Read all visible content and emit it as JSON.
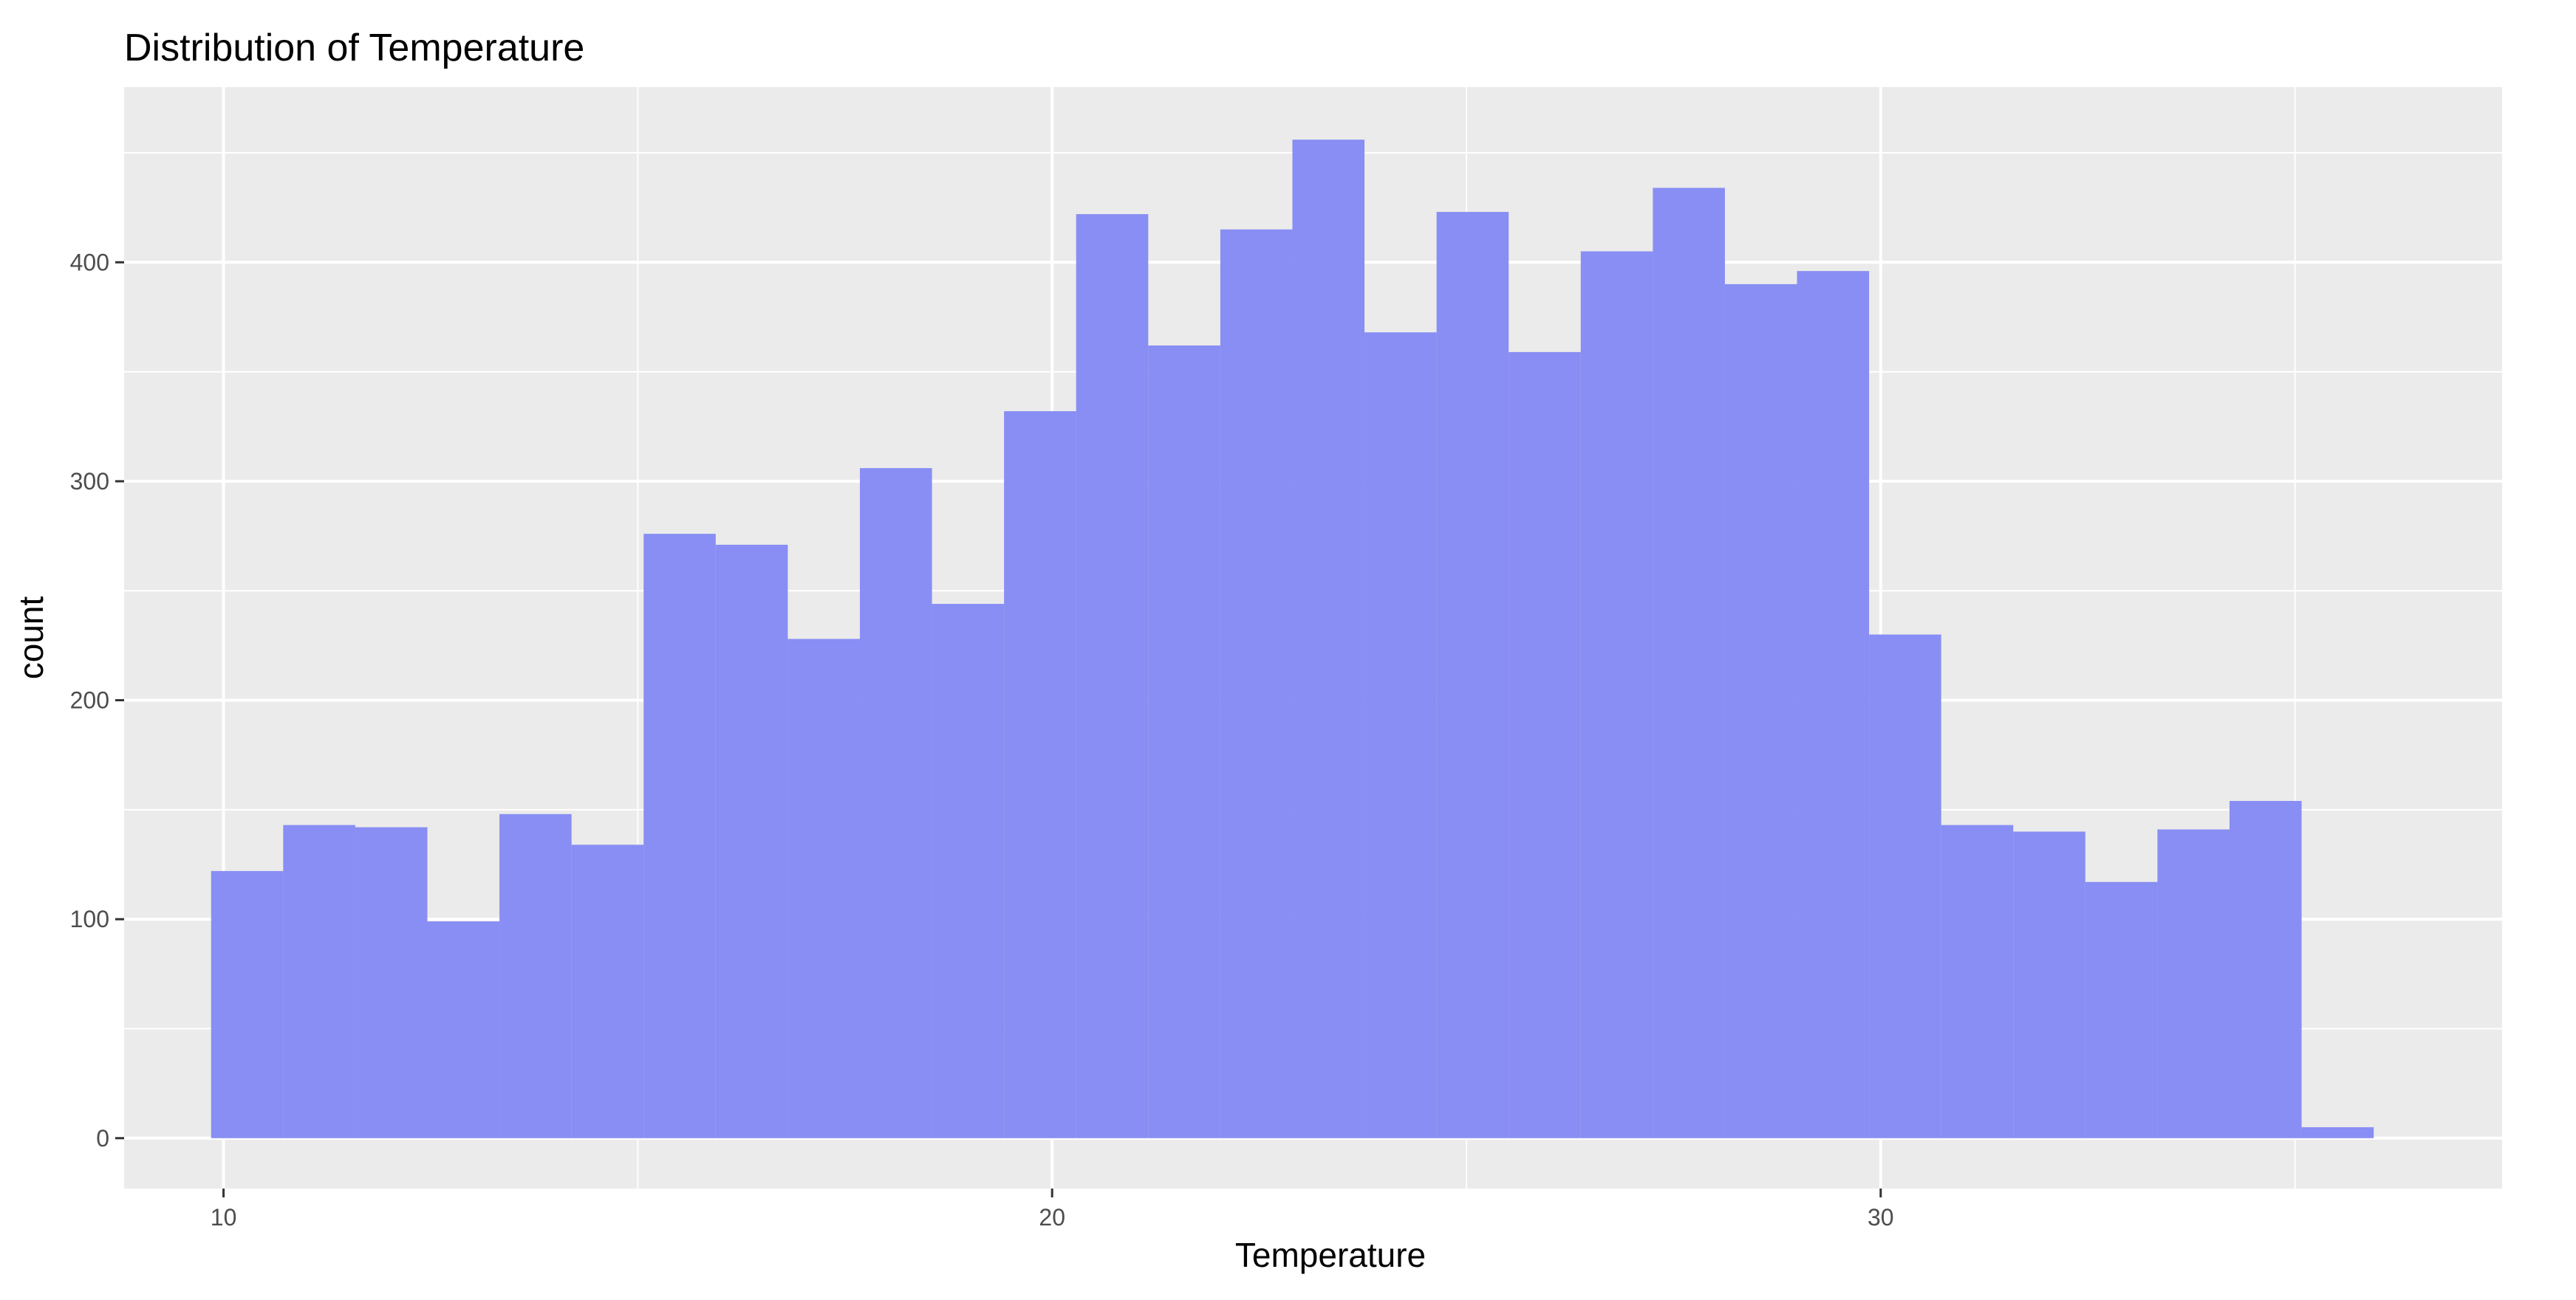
{
  "chart_data": {
    "type": "bar",
    "title": "Distribution of Temperature",
    "xlabel": "Temperature",
    "ylabel": "count",
    "xlim": [
      8.8,
      37.5
    ],
    "ylim": [
      -23,
      480
    ],
    "x_ticks": [
      10,
      20,
      30
    ],
    "x_tick_labels": [
      "10",
      "20",
      "30"
    ],
    "y_ticks": [
      0,
      100,
      200,
      300,
      400
    ],
    "y_tick_labels": [
      "0",
      "100",
      "200",
      "300",
      "400"
    ],
    "grid": true,
    "legend": "none",
    "bar_color": "#8389f3",
    "panel_background": "#ebebeb",
    "grid_color": "#ffffff",
    "bins": [
      {
        "x0": 9.85,
        "x1": 10.72,
        "count": 122
      },
      {
        "x0": 10.72,
        "x1": 11.59,
        "count": 143
      },
      {
        "x0": 11.59,
        "x1": 12.46,
        "count": 142
      },
      {
        "x0": 12.46,
        "x1": 13.33,
        "count": 99
      },
      {
        "x0": 13.33,
        "x1": 14.2,
        "count": 148
      },
      {
        "x0": 14.2,
        "x1": 15.07,
        "count": 134
      },
      {
        "x0": 15.07,
        "x1": 15.94,
        "count": 276
      },
      {
        "x0": 15.94,
        "x1": 16.81,
        "count": 271
      },
      {
        "x0": 16.81,
        "x1": 17.68,
        "count": 228
      },
      {
        "x0": 17.68,
        "x1": 18.55,
        "count": 306
      },
      {
        "x0": 18.55,
        "x1": 19.42,
        "count": 244
      },
      {
        "x0": 19.42,
        "x1": 20.29,
        "count": 332
      },
      {
        "x0": 20.29,
        "x1": 21.16,
        "count": 422
      },
      {
        "x0": 21.16,
        "x1": 22.03,
        "count": 362
      },
      {
        "x0": 22.03,
        "x1": 22.9,
        "count": 415
      },
      {
        "x0": 22.9,
        "x1": 23.77,
        "count": 456
      },
      {
        "x0": 23.77,
        "x1": 24.64,
        "count": 368
      },
      {
        "x0": 24.64,
        "x1": 25.51,
        "count": 423
      },
      {
        "x0": 25.51,
        "x1": 26.38,
        "count": 359
      },
      {
        "x0": 26.38,
        "x1": 27.25,
        "count": 405
      },
      {
        "x0": 27.25,
        "x1": 28.12,
        "count": 434
      },
      {
        "x0": 28.12,
        "x1": 28.99,
        "count": 390
      },
      {
        "x0": 28.99,
        "x1": 29.86,
        "count": 396
      },
      {
        "x0": 29.86,
        "x1": 30.73,
        "count": 230
      },
      {
        "x0": 30.73,
        "x1": 31.6,
        "count": 143
      },
      {
        "x0": 31.6,
        "x1": 32.47,
        "count": 140
      },
      {
        "x0": 32.47,
        "x1": 33.34,
        "count": 117
      },
      {
        "x0": 33.34,
        "x1": 34.21,
        "count": 141
      },
      {
        "x0": 34.21,
        "x1": 35.08,
        "count": 154
      },
      {
        "x0": 35.08,
        "x1": 35.95,
        "count": 5
      }
    ]
  }
}
